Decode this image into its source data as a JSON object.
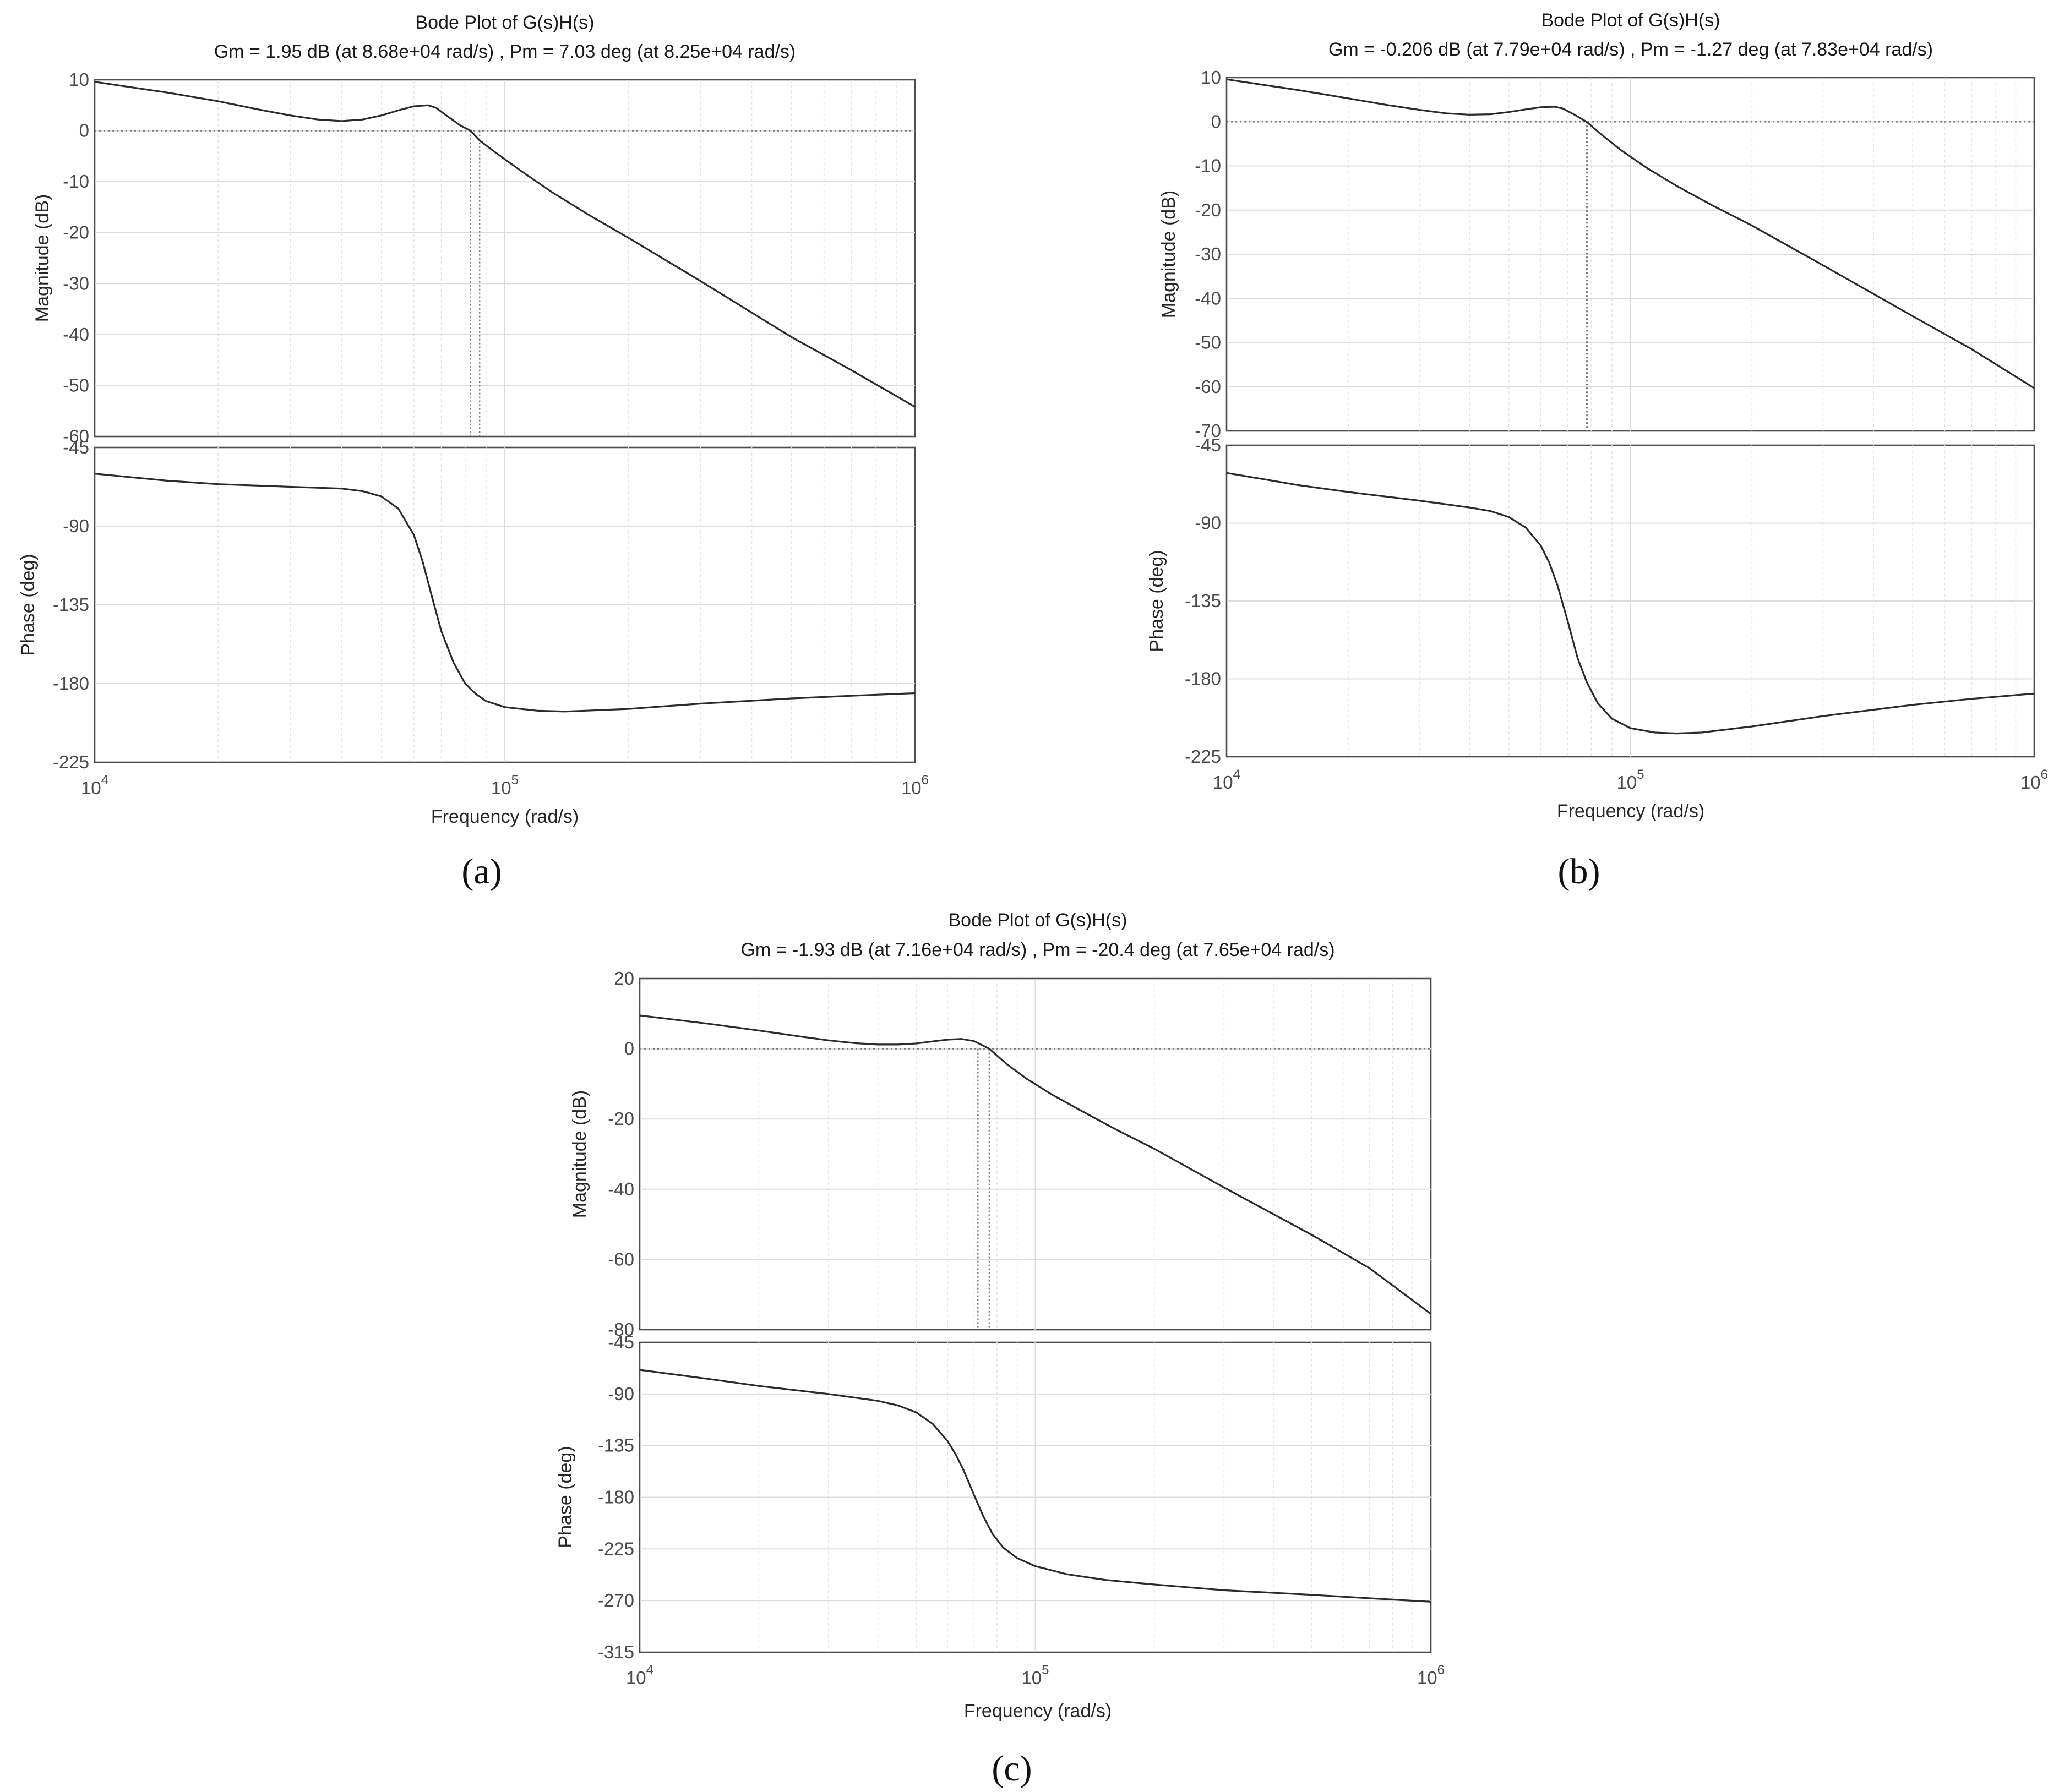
{
  "chart_data": [
    {
      "type": "line",
      "label": "(a)",
      "title": "Bode Plot of G(s)H(s)",
      "subtitle": "Gm = 1.95 dB (at 8.68e+04 rad/s) ,  Pm = 7.03 deg (at 8.25e+04 rad/s)",
      "xlabel": "Frequency  (rad/s)",
      "xscale": "log",
      "xlim": [
        10000,
        1000000
      ],
      "x_ticks": [
        {
          "value": 10000,
          "base": "10",
          "exp": "4"
        },
        {
          "value": 100000,
          "base": "10",
          "exp": "5"
        },
        {
          "value": 1000000,
          "base": "10",
          "exp": "6"
        }
      ],
      "magnitude": {
        "ylabel": "Magnitude (dB)",
        "ylim": [
          -60,
          10
        ],
        "yticks": [
          10,
          0,
          -10,
          -20,
          -30,
          -40,
          -50,
          -60
        ],
        "x": [
          10000,
          15000,
          20000,
          25000,
          30000,
          35000,
          40000,
          45000,
          50000,
          55000,
          60000,
          65000,
          68000,
          72000,
          78000,
          82500,
          86800,
          95000,
          110000,
          130000,
          160000,
          200000,
          300000,
          500000,
          700000,
          1000000
        ],
        "y": [
          9.6,
          7.5,
          5.8,
          4.2,
          3.0,
          2.2,
          1.9,
          2.2,
          3.0,
          4.0,
          4.8,
          5.0,
          4.5,
          3.0,
          1.0,
          0.0,
          -1.9,
          -4.3,
          -8.0,
          -12.0,
          -16.5,
          -21.0,
          -29.5,
          -40.5,
          -47.0,
          -54.2
        ]
      },
      "phase": {
        "ylabel": "Phase (deg)",
        "ylim": [
          -225,
          -45
        ],
        "yticks": [
          -45,
          -90,
          -135,
          -180,
          -225
        ],
        "x": [
          10000,
          15000,
          20000,
          30000,
          40000,
          45000,
          50000,
          55000,
          60000,
          63000,
          66000,
          70000,
          75000,
          80000,
          85000,
          90000,
          100000,
          120000,
          140000,
          200000,
          300000,
          500000,
          700000,
          1000000
        ],
        "y": [
          -60,
          -64,
          -66,
          -67.5,
          -68.5,
          -70,
          -73,
          -80,
          -95,
          -110,
          -128,
          -150,
          -168,
          -180,
          -186,
          -190,
          -193.5,
          -195.5,
          -196,
          -194.5,
          -191.5,
          -188.5,
          -187,
          -185.5
        ]
      },
      "gain_margin_dB": 1.95,
      "gain_crossover_rad_s": 86800,
      "phase_margin_deg": 7.03,
      "phase_crossover_rad_s": 82500
    },
    {
      "type": "line",
      "label": "(b)",
      "title": "Bode Plot of G(s)H(s)",
      "subtitle": "Gm = -0.206 dB (at 7.79e+04 rad/s) ,  Pm = -1.27 deg (at 7.83e+04 rad/s)",
      "xlabel": "Frequency  (rad/s)",
      "xscale": "log",
      "xlim": [
        10000,
        1000000
      ],
      "x_ticks": [
        {
          "value": 10000,
          "base": "10",
          "exp": "4"
        },
        {
          "value": 100000,
          "base": "10",
          "exp": "5"
        },
        {
          "value": 1000000,
          "base": "10",
          "exp": "6"
        }
      ],
      "magnitude": {
        "ylabel": "Magnitude (dB)",
        "ylim": [
          -70,
          10
        ],
        "yticks": [
          10,
          0,
          -10,
          -20,
          -30,
          -40,
          -50,
          -60,
          -70
        ],
        "x": [
          10000,
          15000,
          20000,
          25000,
          30000,
          35000,
          40000,
          45000,
          50000,
          55000,
          60000,
          65000,
          68000,
          72000,
          77900,
          85000,
          95000,
          110000,
          130000,
          160000,
          200000,
          300000,
          500000,
          700000,
          1000000
        ],
        "y": [
          9.6,
          7.2,
          5.3,
          3.8,
          2.7,
          1.9,
          1.6,
          1.7,
          2.2,
          2.8,
          3.3,
          3.4,
          3.0,
          1.8,
          0.0,
          -3.0,
          -6.5,
          -10.5,
          -14.5,
          -19.0,
          -23.5,
          -32.5,
          -44.0,
          -51.5,
          -60.3
        ]
      },
      "phase": {
        "ylabel": "Phase (deg)",
        "ylim": [
          -225,
          -45
        ],
        "yticks": [
          -45,
          -90,
          -135,
          -180,
          -225
        ],
        "x": [
          10000,
          15000,
          20000,
          30000,
          40000,
          45000,
          50000,
          55000,
          60000,
          63000,
          66000,
          70000,
          74000,
          78000,
          83000,
          90000,
          100000,
          115000,
          130000,
          150000,
          200000,
          300000,
          500000,
          700000,
          1000000
        ],
        "y": [
          -61,
          -68,
          -72,
          -77,
          -81,
          -83,
          -86.5,
          -92.5,
          -103,
          -113,
          -126,
          -147,
          -168,
          -182,
          -194,
          -203,
          -208.5,
          -211,
          -211.5,
          -211,
          -207.5,
          -201.5,
          -195,
          -191.5,
          -188.5
        ]
      },
      "gain_margin_dB": -0.206,
      "gain_crossover_rad_s": 77900,
      "phase_margin_deg": -1.27,
      "phase_crossover_rad_s": 78300
    },
    {
      "type": "line",
      "label": "(c)",
      "title": "Bode Plot of G(s)H(s)",
      "subtitle": "Gm = -1.93 dB (at 7.16e+04 rad/s) ,  Pm = -20.4 deg (at 7.65e+04 rad/s)",
      "xlabel": "Frequency  (rad/s)",
      "xscale": "log",
      "xlim": [
        10000,
        1000000
      ],
      "x_ticks": [
        {
          "value": 10000,
          "base": "10",
          "exp": "4"
        },
        {
          "value": 100000,
          "base": "10",
          "exp": "5"
        },
        {
          "value": 1000000,
          "base": "10",
          "exp": "6"
        }
      ],
      "magnitude": {
        "ylabel": "Magnitude (dB)",
        "ylim": [
          -80,
          20
        ],
        "yticks": [
          20,
          0,
          -20,
          -40,
          -60,
          -80
        ],
        "x": [
          10000,
          15000,
          20000,
          25000,
          30000,
          35000,
          40000,
          45000,
          50000,
          55000,
          60000,
          65000,
          70000,
          76500,
          85000,
          95000,
          110000,
          130000,
          160000,
          200000,
          300000,
          500000,
          700000,
          1000000
        ],
        "y": [
          9.5,
          7.1,
          5.2,
          3.6,
          2.4,
          1.6,
          1.2,
          1.2,
          1.5,
          2.1,
          2.6,
          2.8,
          2.2,
          0.0,
          -4.5,
          -8.5,
          -13.0,
          -17.5,
          -23.0,
          -28.5,
          -39.5,
          -53.0,
          -62.5,
          -75.5
        ]
      },
      "phase": {
        "ylabel": "Phase (deg)",
        "ylim": [
          -315,
          -45
        ],
        "yticks": [
          -45,
          -90,
          -135,
          -180,
          -225,
          -270,
          -315
        ],
        "x": [
          10000,
          15000,
          20000,
          30000,
          40000,
          45000,
          50000,
          55000,
          60000,
          63000,
          66000,
          70000,
          74000,
          78000,
          83000,
          90000,
          100000,
          120000,
          150000,
          200000,
          300000,
          500000,
          700000,
          1000000
        ],
        "y": [
          -69,
          -77,
          -83,
          -90,
          -96,
          -100,
          -106,
          -116,
          -131,
          -143,
          -157,
          -178,
          -197,
          -212,
          -224,
          -233,
          -240,
          -247,
          -252,
          -256,
          -261,
          -265,
          -268,
          -271
        ]
      },
      "gain_margin_dB": -1.93,
      "gain_crossover_rad_s": 71600,
      "phase_margin_deg": -20.4,
      "phase_crossover_rad_s": 76500
    }
  ]
}
